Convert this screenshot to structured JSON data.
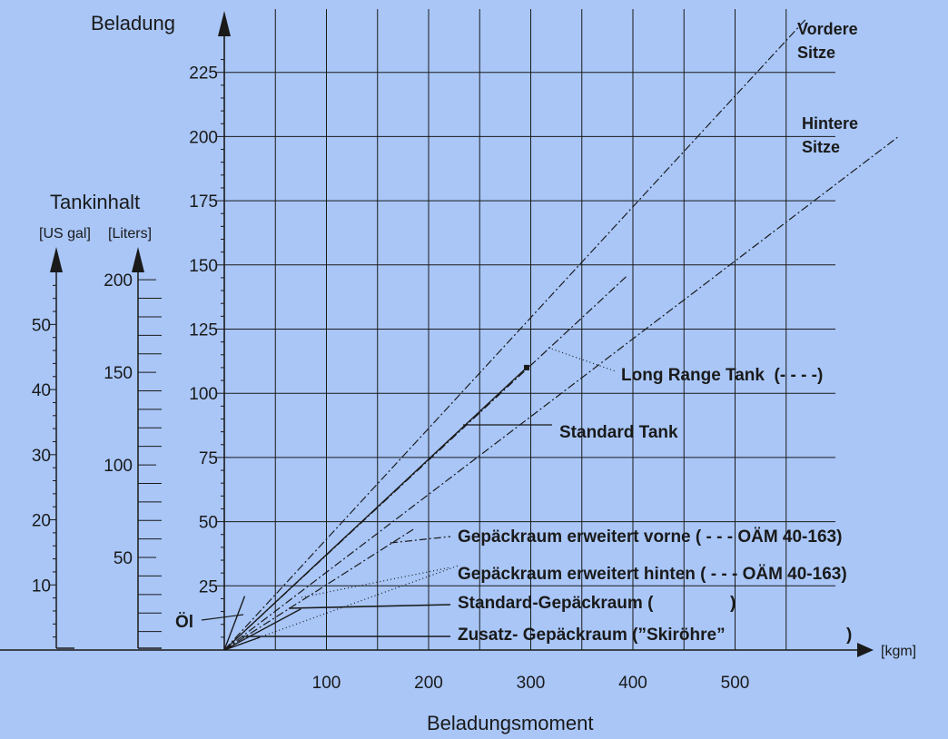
{
  "chart_data": {
    "type": "line",
    "title": "",
    "ylabel": "Beladung",
    "xlabel": "Beladungsmoment",
    "x_unit": "[kgm]",
    "xlim": [
      0,
      600
    ],
    "ylim": [
      0,
      240
    ],
    "x_ticks": [
      100,
      200,
      300,
      400,
      500
    ],
    "y_ticks": [
      25,
      50,
      75,
      100,
      125,
      150,
      175,
      200,
      225
    ],
    "grid": true,
    "series": [
      {
        "name": "Vordere Sitze",
        "style": "dash-dot",
        "points": [
          [
            0,
            0
          ],
          [
            570,
            246
          ]
        ]
      },
      {
        "name": "Hintere Sitze",
        "style": "dash-dot",
        "points": [
          [
            0,
            0
          ],
          [
            660,
            200
          ]
        ]
      },
      {
        "name": "Long Range Tank (- - - -)",
        "style": "dash-dot",
        "points": [
          [
            0,
            0
          ],
          [
            395,
            146
          ]
        ]
      },
      {
        "name": "Standard Tank",
        "style": "solid",
        "points": [
          [
            0,
            0
          ],
          [
            296,
            110
          ]
        ]
      },
      {
        "name": "Gepäckraum erweitert vorne ( - - - OÄM 40-163)",
        "style": "dash-dot",
        "points": [
          [
            0,
            0
          ],
          [
            185,
            47
          ]
        ]
      },
      {
        "name": "Gepäckraum erweitert hinten ( - - - OÄM 40-163)",
        "style": "dotted",
        "points": [
          [
            0,
            0
          ],
          [
            230,
            33
          ]
        ]
      },
      {
        "name": "Standard-Gepäckraum ( ——— )",
        "style": "solid",
        "points": [
          [
            0,
            0
          ],
          [
            75,
            16
          ]
        ]
      },
      {
        "name": "Zusatz- Gepäckraum (”Skiröhre” ——— )",
        "style": "solid",
        "points": [
          [
            0,
            0
          ],
          [
            35,
            5
          ]
        ]
      },
      {
        "name": "Öl",
        "style": "solid",
        "points": [
          [
            0,
            0
          ],
          [
            20,
            21
          ]
        ]
      }
    ],
    "annotations": {
      "vordere": [
        "Vordere",
        "Sitze"
      ],
      "hintere": [
        "Hintere",
        "Sitze"
      ],
      "long_range": "Long Range Tank  (- - - -)",
      "standard_tank": "Standard Tank",
      "erw_vorne": "Gepäckraum erweitert vorne ( - - - OÄM 40-163)",
      "erw_hinten": "Gepäckraum erweitert hinten ( - - - OÄM 40-163)",
      "std_gepaeck": "Standard-Gepäckraum (",
      "zusatz": "Zusatz- Gepäckraum (”Skiröhre”",
      "oel": "Öl"
    },
    "tank_scale": {
      "title": "Tankinhalt",
      "us_gal_label": "[US gal]",
      "liters_label": "[Liters]",
      "us_gal_ticks": [
        10,
        20,
        30,
        40,
        50
      ],
      "liters_ticks": [
        50,
        100,
        150,
        200
      ],
      "us_gal_max": 58,
      "liters_max": 204
    }
  },
  "colors": {
    "background": "#a9c6f7",
    "ink": "#1a1a1a"
  }
}
